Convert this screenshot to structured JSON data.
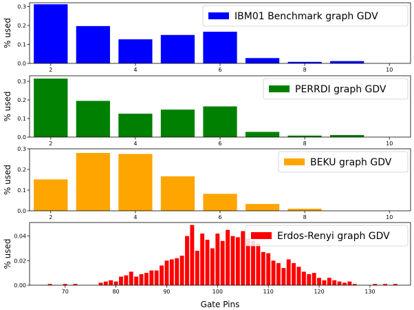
{
  "chart_data": [
    {
      "type": "bar",
      "legend_label": "IBM01 Benchmark graph GDV",
      "legend_position": "top-right",
      "color": "#0000ff",
      "ylabel": "% used",
      "xlabel": "",
      "x": [
        2,
        3,
        4,
        5,
        6,
        7,
        8,
        9
      ],
      "values": [
        0.312,
        0.197,
        0.127,
        0.15,
        0.167,
        0.028,
        0.008,
        0.012
      ],
      "xlim": [
        1.5,
        10.5
      ],
      "ylim": [
        0,
        0.32
      ],
      "xticks": [
        2,
        4,
        6,
        8,
        10
      ],
      "yticks": [
        0.0,
        0.1,
        0.2,
        0.3
      ],
      "ytick_labels": [
        "0.0",
        "0.1",
        "0.2",
        "0.3"
      ]
    },
    {
      "type": "bar",
      "legend_label": "PERRDI graph GDV",
      "legend_position": "top-right",
      "color": "#008000",
      "ylabel": "% used",
      "xlabel": "",
      "x": [
        2,
        3,
        4,
        5,
        6,
        7,
        8,
        9
      ],
      "values": [
        0.315,
        0.195,
        0.126,
        0.148,
        0.165,
        0.028,
        0.008,
        0.011
      ],
      "xlim": [
        1.5,
        10.5
      ],
      "ylim": [
        0,
        0.33
      ],
      "xticks": [
        2,
        4,
        6,
        8,
        10
      ],
      "yticks": [
        0.0,
        0.1,
        0.2,
        0.3
      ],
      "ytick_labels": [
        "0.0",
        "0.1",
        "0.2",
        "0.3"
      ]
    },
    {
      "type": "bar",
      "legend_label": "BEKU graph GDV",
      "legend_position": "top-right",
      "color": "#ffa500",
      "ylabel": "% used",
      "xlabel": "",
      "x": [
        2,
        3,
        4,
        5,
        6,
        7,
        8
      ],
      "values": [
        0.152,
        0.28,
        0.275,
        0.167,
        0.082,
        0.033,
        0.01
      ],
      "xlim": [
        1.5,
        10.5
      ],
      "ylim": [
        0,
        0.3
      ],
      "xticks": [
        2,
        4,
        6,
        8,
        10
      ],
      "yticks": [
        0.0,
        0.1,
        0.2,
        0.3
      ],
      "ytick_labels": [
        "0.0",
        "0.1",
        "0.2",
        "0.3"
      ]
    },
    {
      "type": "bar",
      "legend_label": "Erdos-Renyi graph GDV",
      "legend_position": "top-right",
      "color": "#ff0000",
      "ylabel": "% used",
      "xlabel": "Gate Pins",
      "x": [
        67,
        70,
        72,
        77,
        78,
        79,
        80,
        81,
        82,
        83,
        84,
        85,
        86,
        87,
        88,
        89,
        90,
        91,
        92,
        93,
        94,
        95,
        96,
        97,
        98,
        99,
        100,
        101,
        102,
        103,
        104,
        105,
        106,
        107,
        108,
        109,
        110,
        111,
        112,
        113,
        114,
        115,
        116,
        117,
        118,
        119,
        120,
        121,
        122,
        123,
        124,
        125,
        126,
        127,
        131,
        133,
        135
      ],
      "values": [
        0.001,
        0.001,
        0.001,
        0.002,
        0.003,
        0.004,
        0.003,
        0.007,
        0.008,
        0.011,
        0.007,
        0.009,
        0.01,
        0.012,
        0.012,
        0.016,
        0.02,
        0.021,
        0.022,
        0.024,
        0.04,
        0.049,
        0.028,
        0.042,
        0.037,
        0.03,
        0.042,
        0.036,
        0.045,
        0.04,
        0.039,
        0.044,
        0.038,
        0.036,
        0.034,
        0.027,
        0.026,
        0.02,
        0.018,
        0.014,
        0.021,
        0.018,
        0.015,
        0.011,
        0.009,
        0.01,
        0.006,
        0.004,
        0.006,
        0.004,
        0.003,
        0.002,
        0.003,
        0.001,
        0.001,
        0.001,
        0.001
      ],
      "xlim": [
        63,
        138
      ],
      "ylim": [
        0,
        0.051
      ],
      "xticks": [
        70,
        80,
        90,
        100,
        110,
        120,
        130
      ],
      "yticks": [
        0.0,
        0.02,
        0.04
      ],
      "ytick_labels": [
        "0.00",
        "0.02",
        "0.04"
      ]
    }
  ]
}
